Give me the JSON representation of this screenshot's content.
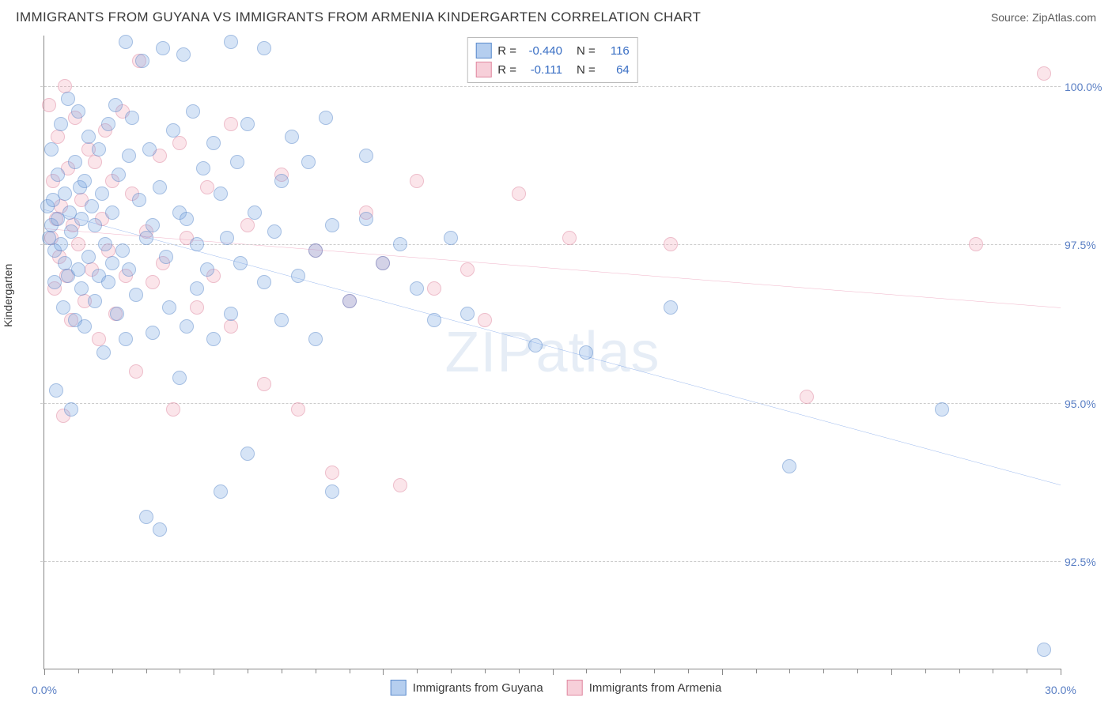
{
  "header": {
    "title": "IMMIGRANTS FROM GUYANA VS IMMIGRANTS FROM ARMENIA KINDERGARTEN CORRELATION CHART",
    "source_prefix": "Source: ",
    "source": "ZipAtlas.com"
  },
  "watermark": {
    "zip": "ZIP",
    "atlas": "atlas"
  },
  "chart": {
    "type": "scatter",
    "y_axis_label": "Kindergarten",
    "xlim": [
      0,
      30
    ],
    "ylim": [
      90.8,
      100.8
    ],
    "x_ticks_major": [
      0,
      5,
      10,
      15,
      20,
      25,
      30
    ],
    "x_ticks_minor": [
      1,
      2,
      3,
      4,
      6,
      7,
      8,
      9,
      11,
      12,
      13,
      14,
      16,
      17,
      18,
      19,
      21,
      22,
      23,
      24,
      26,
      27,
      28,
      29
    ],
    "x_tick_labels": [
      {
        "x": 0,
        "label": "0.0%"
      },
      {
        "x": 30,
        "label": "30.0%"
      }
    ],
    "y_ticks": [
      92.5,
      95.0,
      97.5,
      100.0
    ],
    "y_tick_labels": [
      "92.5%",
      "95.0%",
      "97.5%",
      "100.0%"
    ],
    "grid_color": "#cccccc",
    "axis_color": "#888888",
    "background_color": "#ffffff",
    "point_radius": 9,
    "point_opacity": 0.55,
    "series": [
      {
        "name": "Immigrants from Guyana",
        "color_fill": "#78a5e1",
        "color_stroke": "#5a8acc",
        "css_class": "blue",
        "R": "-0.440",
        "N": "116",
        "trend": {
          "x1": 0,
          "y1": 98.05,
          "x2": 30,
          "y2": 93.7,
          "color": "#2a6adc",
          "width": 2
        },
        "points": [
          [
            0.1,
            98.1
          ],
          [
            0.15,
            97.6
          ],
          [
            0.2,
            97.8
          ],
          [
            0.2,
            99.0
          ],
          [
            0.25,
            98.2
          ],
          [
            0.3,
            96.9
          ],
          [
            0.3,
            97.4
          ],
          [
            0.35,
            95.2
          ],
          [
            0.4,
            97.9
          ],
          [
            0.4,
            98.6
          ],
          [
            0.5,
            97.5
          ],
          [
            0.5,
            99.4
          ],
          [
            0.55,
            96.5
          ],
          [
            0.6,
            97.2
          ],
          [
            0.6,
            98.3
          ],
          [
            0.7,
            97.0
          ],
          [
            0.7,
            99.8
          ],
          [
            0.75,
            98.0
          ],
          [
            0.8,
            94.9
          ],
          [
            0.8,
            97.7
          ],
          [
            0.9,
            96.3
          ],
          [
            0.9,
            98.8
          ],
          [
            1.0,
            97.1
          ],
          [
            1.0,
            99.6
          ],
          [
            1.05,
            98.4
          ],
          [
            1.1,
            96.8
          ],
          [
            1.1,
            97.9
          ],
          [
            1.2,
            98.5
          ],
          [
            1.2,
            96.2
          ],
          [
            1.3,
            97.3
          ],
          [
            1.3,
            99.2
          ],
          [
            1.4,
            98.1
          ],
          [
            1.5,
            96.6
          ],
          [
            1.5,
            97.8
          ],
          [
            1.6,
            99.0
          ],
          [
            1.6,
            97.0
          ],
          [
            1.7,
            98.3
          ],
          [
            1.75,
            95.8
          ],
          [
            1.8,
            97.5
          ],
          [
            1.9,
            99.4
          ],
          [
            1.9,
            96.9
          ],
          [
            2.0,
            98.0
          ],
          [
            2.0,
            97.2
          ],
          [
            2.1,
            99.7
          ],
          [
            2.15,
            96.4
          ],
          [
            2.2,
            98.6
          ],
          [
            2.3,
            97.4
          ],
          [
            2.4,
            100.7
          ],
          [
            2.4,
            96.0
          ],
          [
            2.5,
            98.9
          ],
          [
            2.5,
            97.1
          ],
          [
            2.6,
            99.5
          ],
          [
            2.7,
            96.7
          ],
          [
            2.8,
            98.2
          ],
          [
            2.9,
            100.4
          ],
          [
            3.0,
            97.6
          ],
          [
            3.0,
            93.2
          ],
          [
            3.1,
            99.0
          ],
          [
            3.2,
            96.1
          ],
          [
            3.2,
            97.8
          ],
          [
            3.4,
            98.4
          ],
          [
            3.4,
            93.0
          ],
          [
            3.5,
            100.6
          ],
          [
            3.6,
            97.3
          ],
          [
            3.7,
            96.5
          ],
          [
            3.8,
            99.3
          ],
          [
            4.0,
            98.0
          ],
          [
            4.0,
            95.4
          ],
          [
            4.1,
            100.5
          ],
          [
            4.2,
            97.9
          ],
          [
            4.2,
            96.2
          ],
          [
            4.4,
            99.6
          ],
          [
            4.5,
            97.5
          ],
          [
            4.5,
            96.8
          ],
          [
            4.7,
            98.7
          ],
          [
            4.8,
            97.1
          ],
          [
            5.0,
            99.1
          ],
          [
            5.0,
            96.0
          ],
          [
            5.2,
            98.3
          ],
          [
            5.2,
            93.6
          ],
          [
            5.4,
            97.6
          ],
          [
            5.5,
            96.4
          ],
          [
            5.5,
            100.7
          ],
          [
            5.7,
            98.8
          ],
          [
            5.8,
            97.2
          ],
          [
            6.0,
            99.4
          ],
          [
            6.0,
            94.2
          ],
          [
            6.2,
            98.0
          ],
          [
            6.5,
            96.9
          ],
          [
            6.5,
            100.6
          ],
          [
            6.8,
            97.7
          ],
          [
            7.0,
            98.5
          ],
          [
            7.0,
            96.3
          ],
          [
            7.3,
            99.2
          ],
          [
            7.5,
            97.0
          ],
          [
            7.8,
            98.8
          ],
          [
            8.0,
            97.4
          ],
          [
            8.0,
            96.0
          ],
          [
            8.3,
            99.5
          ],
          [
            8.5,
            97.8
          ],
          [
            8.5,
            93.6
          ],
          [
            9.0,
            96.6
          ],
          [
            9.5,
            97.9
          ],
          [
            9.5,
            98.9
          ],
          [
            10.0,
            97.2
          ],
          [
            10.5,
            97.5
          ],
          [
            11.0,
            96.8
          ],
          [
            11.5,
            96.3
          ],
          [
            12.0,
            97.6
          ],
          [
            12.5,
            96.4
          ],
          [
            14.5,
            95.9
          ],
          [
            16.0,
            95.8
          ],
          [
            18.5,
            96.5
          ],
          [
            22.0,
            94.0
          ],
          [
            26.5,
            94.9
          ],
          [
            29.5,
            91.1
          ]
        ]
      },
      {
        "name": "Immigrants from Armenia",
        "color_fill": "#f0a0b4",
        "color_stroke": "#e088a0",
        "css_class": "pink",
        "R": "-0.111",
        "N": "64",
        "trend": {
          "x1": 0,
          "y1": 97.75,
          "x2": 30,
          "y2": 96.5,
          "color": "#e05a8a",
          "width": 2
        },
        "points": [
          [
            0.15,
            99.7
          ],
          [
            0.2,
            97.6
          ],
          [
            0.25,
            98.5
          ],
          [
            0.3,
            96.8
          ],
          [
            0.35,
            97.9
          ],
          [
            0.4,
            99.2
          ],
          [
            0.45,
            97.3
          ],
          [
            0.5,
            98.1
          ],
          [
            0.55,
            94.8
          ],
          [
            0.6,
            100.0
          ],
          [
            0.65,
            97.0
          ],
          [
            0.7,
            98.7
          ],
          [
            0.8,
            96.3
          ],
          [
            0.85,
            97.8
          ],
          [
            0.9,
            99.5
          ],
          [
            1.0,
            97.5
          ],
          [
            1.1,
            98.2
          ],
          [
            1.2,
            96.6
          ],
          [
            1.3,
            99.0
          ],
          [
            1.4,
            97.1
          ],
          [
            1.5,
            98.8
          ],
          [
            1.6,
            96.0
          ],
          [
            1.7,
            97.9
          ],
          [
            1.8,
            99.3
          ],
          [
            1.9,
            97.4
          ],
          [
            2.0,
            98.5
          ],
          [
            2.1,
            96.4
          ],
          [
            2.3,
            99.6
          ],
          [
            2.4,
            97.0
          ],
          [
            2.6,
            98.3
          ],
          [
            2.7,
            95.5
          ],
          [
            2.8,
            100.4
          ],
          [
            3.0,
            97.7
          ],
          [
            3.2,
            96.9
          ],
          [
            3.4,
            98.9
          ],
          [
            3.5,
            97.2
          ],
          [
            3.8,
            94.9
          ],
          [
            4.0,
            99.1
          ],
          [
            4.2,
            97.6
          ],
          [
            4.5,
            96.5
          ],
          [
            4.8,
            98.4
          ],
          [
            5.0,
            97.0
          ],
          [
            5.5,
            99.4
          ],
          [
            5.5,
            96.2
          ],
          [
            6.0,
            97.8
          ],
          [
            6.5,
            95.3
          ],
          [
            7.0,
            98.6
          ],
          [
            7.5,
            94.9
          ],
          [
            8.0,
            97.4
          ],
          [
            8.5,
            93.9
          ],
          [
            9.0,
            96.6
          ],
          [
            9.5,
            98.0
          ],
          [
            10.0,
            97.2
          ],
          [
            10.5,
            93.7
          ],
          [
            11.0,
            98.5
          ],
          [
            11.5,
            96.8
          ],
          [
            12.5,
            97.1
          ],
          [
            13.0,
            96.3
          ],
          [
            14.0,
            98.3
          ],
          [
            15.5,
            97.6
          ],
          [
            18.5,
            97.5
          ],
          [
            22.5,
            95.1
          ],
          [
            27.5,
            97.5
          ],
          [
            29.5,
            100.2
          ]
        ]
      }
    ]
  },
  "legend_top": {
    "r_label": "R =",
    "n_label": "N ="
  },
  "legend_bottom": {
    "items": [
      "Immigrants from Guyana",
      "Immigrants from Armenia"
    ]
  }
}
